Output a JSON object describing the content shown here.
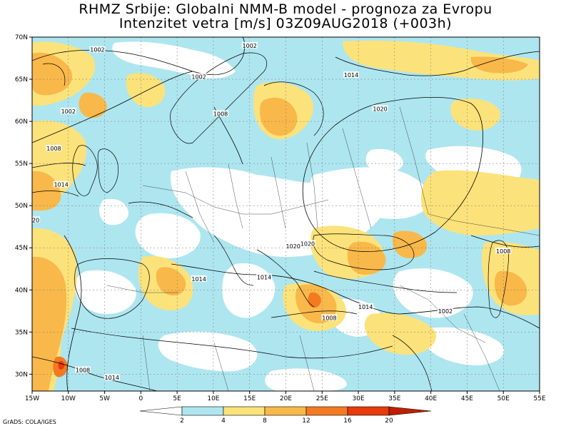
{
  "title_line1": "RHMZ Srbije: Globalni NMM-B model - prognoza za Evropu",
  "title_line2": "Intenzitet vetra [m/s] 03Z09AUG2018 (+003h)",
  "credit": "GrADS: COLA/IGES",
  "map": {
    "lon_range": [
      -15,
      55
    ],
    "lat_range": [
      28,
      70
    ],
    "lat_ticks": [
      "70N",
      "65N",
      "60N",
      "55N",
      "50N",
      "45N",
      "40N",
      "35N",
      "30N"
    ],
    "lon_ticks": [
      "15W",
      "10W",
      "5W",
      "0",
      "5E",
      "10E",
      "15E",
      "20E",
      "25E",
      "30E",
      "35E",
      "40E",
      "45E",
      "50E",
      "55E"
    ],
    "gridlines": true,
    "isobar_labels": [
      "1002",
      "1002",
      "1002",
      "1002",
      "1008",
      "1008",
      "1008",
      "1014",
      "1014",
      "1014",
      "1014",
      "1014",
      "1020",
      "1020",
      "1020",
      "1008",
      "1008",
      "1002",
      "1014",
      "20"
    ]
  },
  "colorbar": {
    "ticks": [
      "2",
      "4",
      "8",
      "12",
      "16",
      "20"
    ],
    "colors": [
      "#ffffff",
      "#aee6f0",
      "#fce27a",
      "#f9b84a",
      "#f47a22",
      "#e83a0a",
      "#c01e00"
    ]
  },
  "palette": {
    "light_blue": "#aee6f0",
    "yellow": "#fce27a",
    "orange": "#f9b84a",
    "dark_orange": "#f47a22",
    "red": "#e83a0a"
  }
}
